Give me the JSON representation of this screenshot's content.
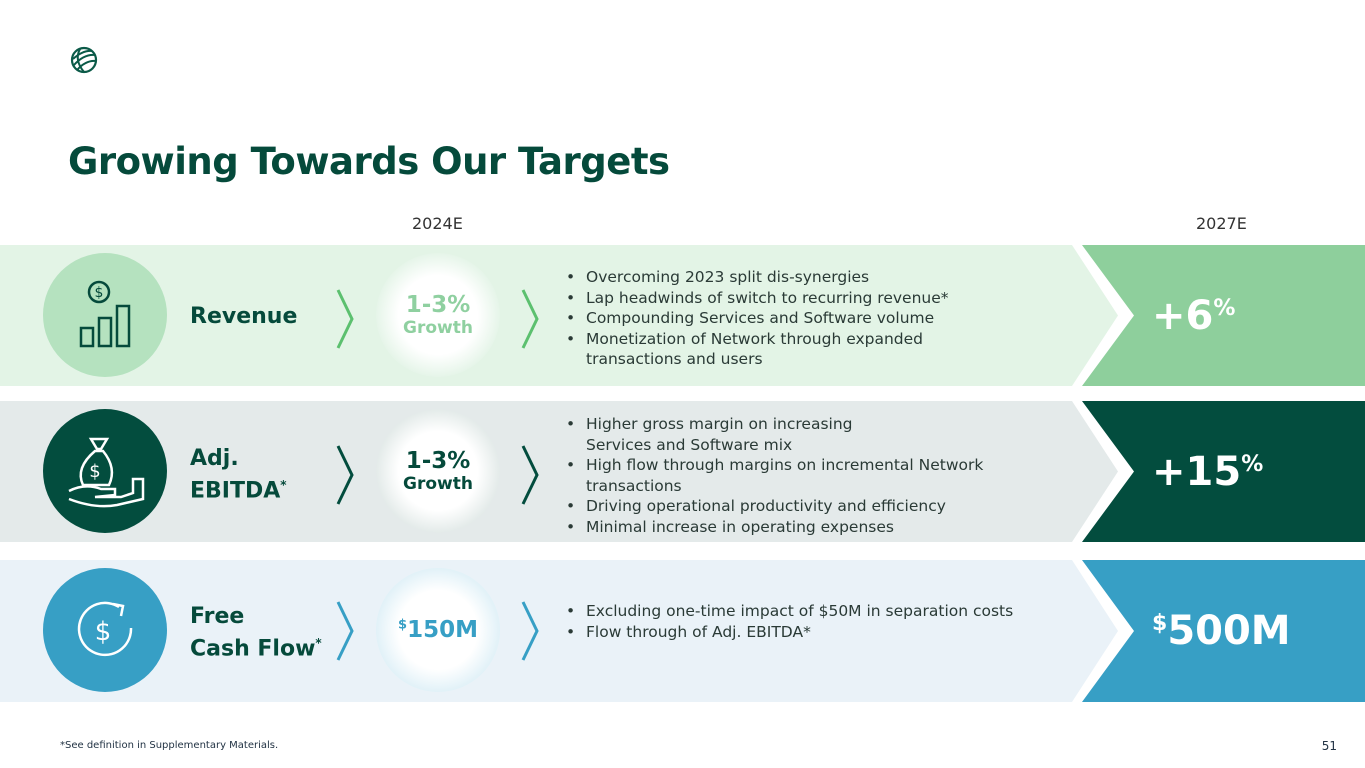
{
  "title": "Growing Towards Our Targets",
  "years": {
    "current": "2024E",
    "target": "2027E"
  },
  "rows": [
    {
      "label_lines": [
        "Revenue"
      ],
      "asterisk": "",
      "bubble_big": "1-3%",
      "bubble_small": "Growth",
      "bullets": [
        "Overcoming 2023 split dis-synergies",
        "Lap headwinds of switch to recurring revenue*",
        "Compounding Services and Software volume",
        "Monetization of Network through expanded transactions and users"
      ],
      "target_main": "+6",
      "target_suffix": "%",
      "icon": "revenue-chart-icon"
    },
    {
      "label_lines": [
        "Adj.",
        "EBITDA"
      ],
      "asterisk": "*",
      "bubble_big": "1-3%",
      "bubble_small": "Growth",
      "bullets": [
        "Higher gross margin on increasing Services and Software mix",
        "High flow through margins on incremental Network transactions",
        "Driving operational productivity and efficiency",
        "Minimal increase in operating expenses"
      ],
      "target_main": "+15",
      "target_suffix": "%",
      "icon": "money-bag-hand-icon"
    },
    {
      "label_lines": [
        "Free",
        "Cash Flow"
      ],
      "asterisk": "*",
      "bubble_prefix": "$",
      "bubble_big": "150M",
      "bullets": [
        "Excluding one-time impact of $50M in separation costs",
        "Flow through of Adj. EBITDA*"
      ],
      "target_prefix": "$",
      "target_main": "500M",
      "icon": "cash-cycle-icon"
    }
  ],
  "colors": {
    "green_light": "#e3f4e6",
    "green_target": "#8ecf9c",
    "dark_green": "#034d3e",
    "gray_band": "#e4eaea",
    "blue_band": "#eaf2f8",
    "blue": "#379fc5"
  },
  "footnote": "*See definition in Supplementary Materials.",
  "page_number": "51"
}
